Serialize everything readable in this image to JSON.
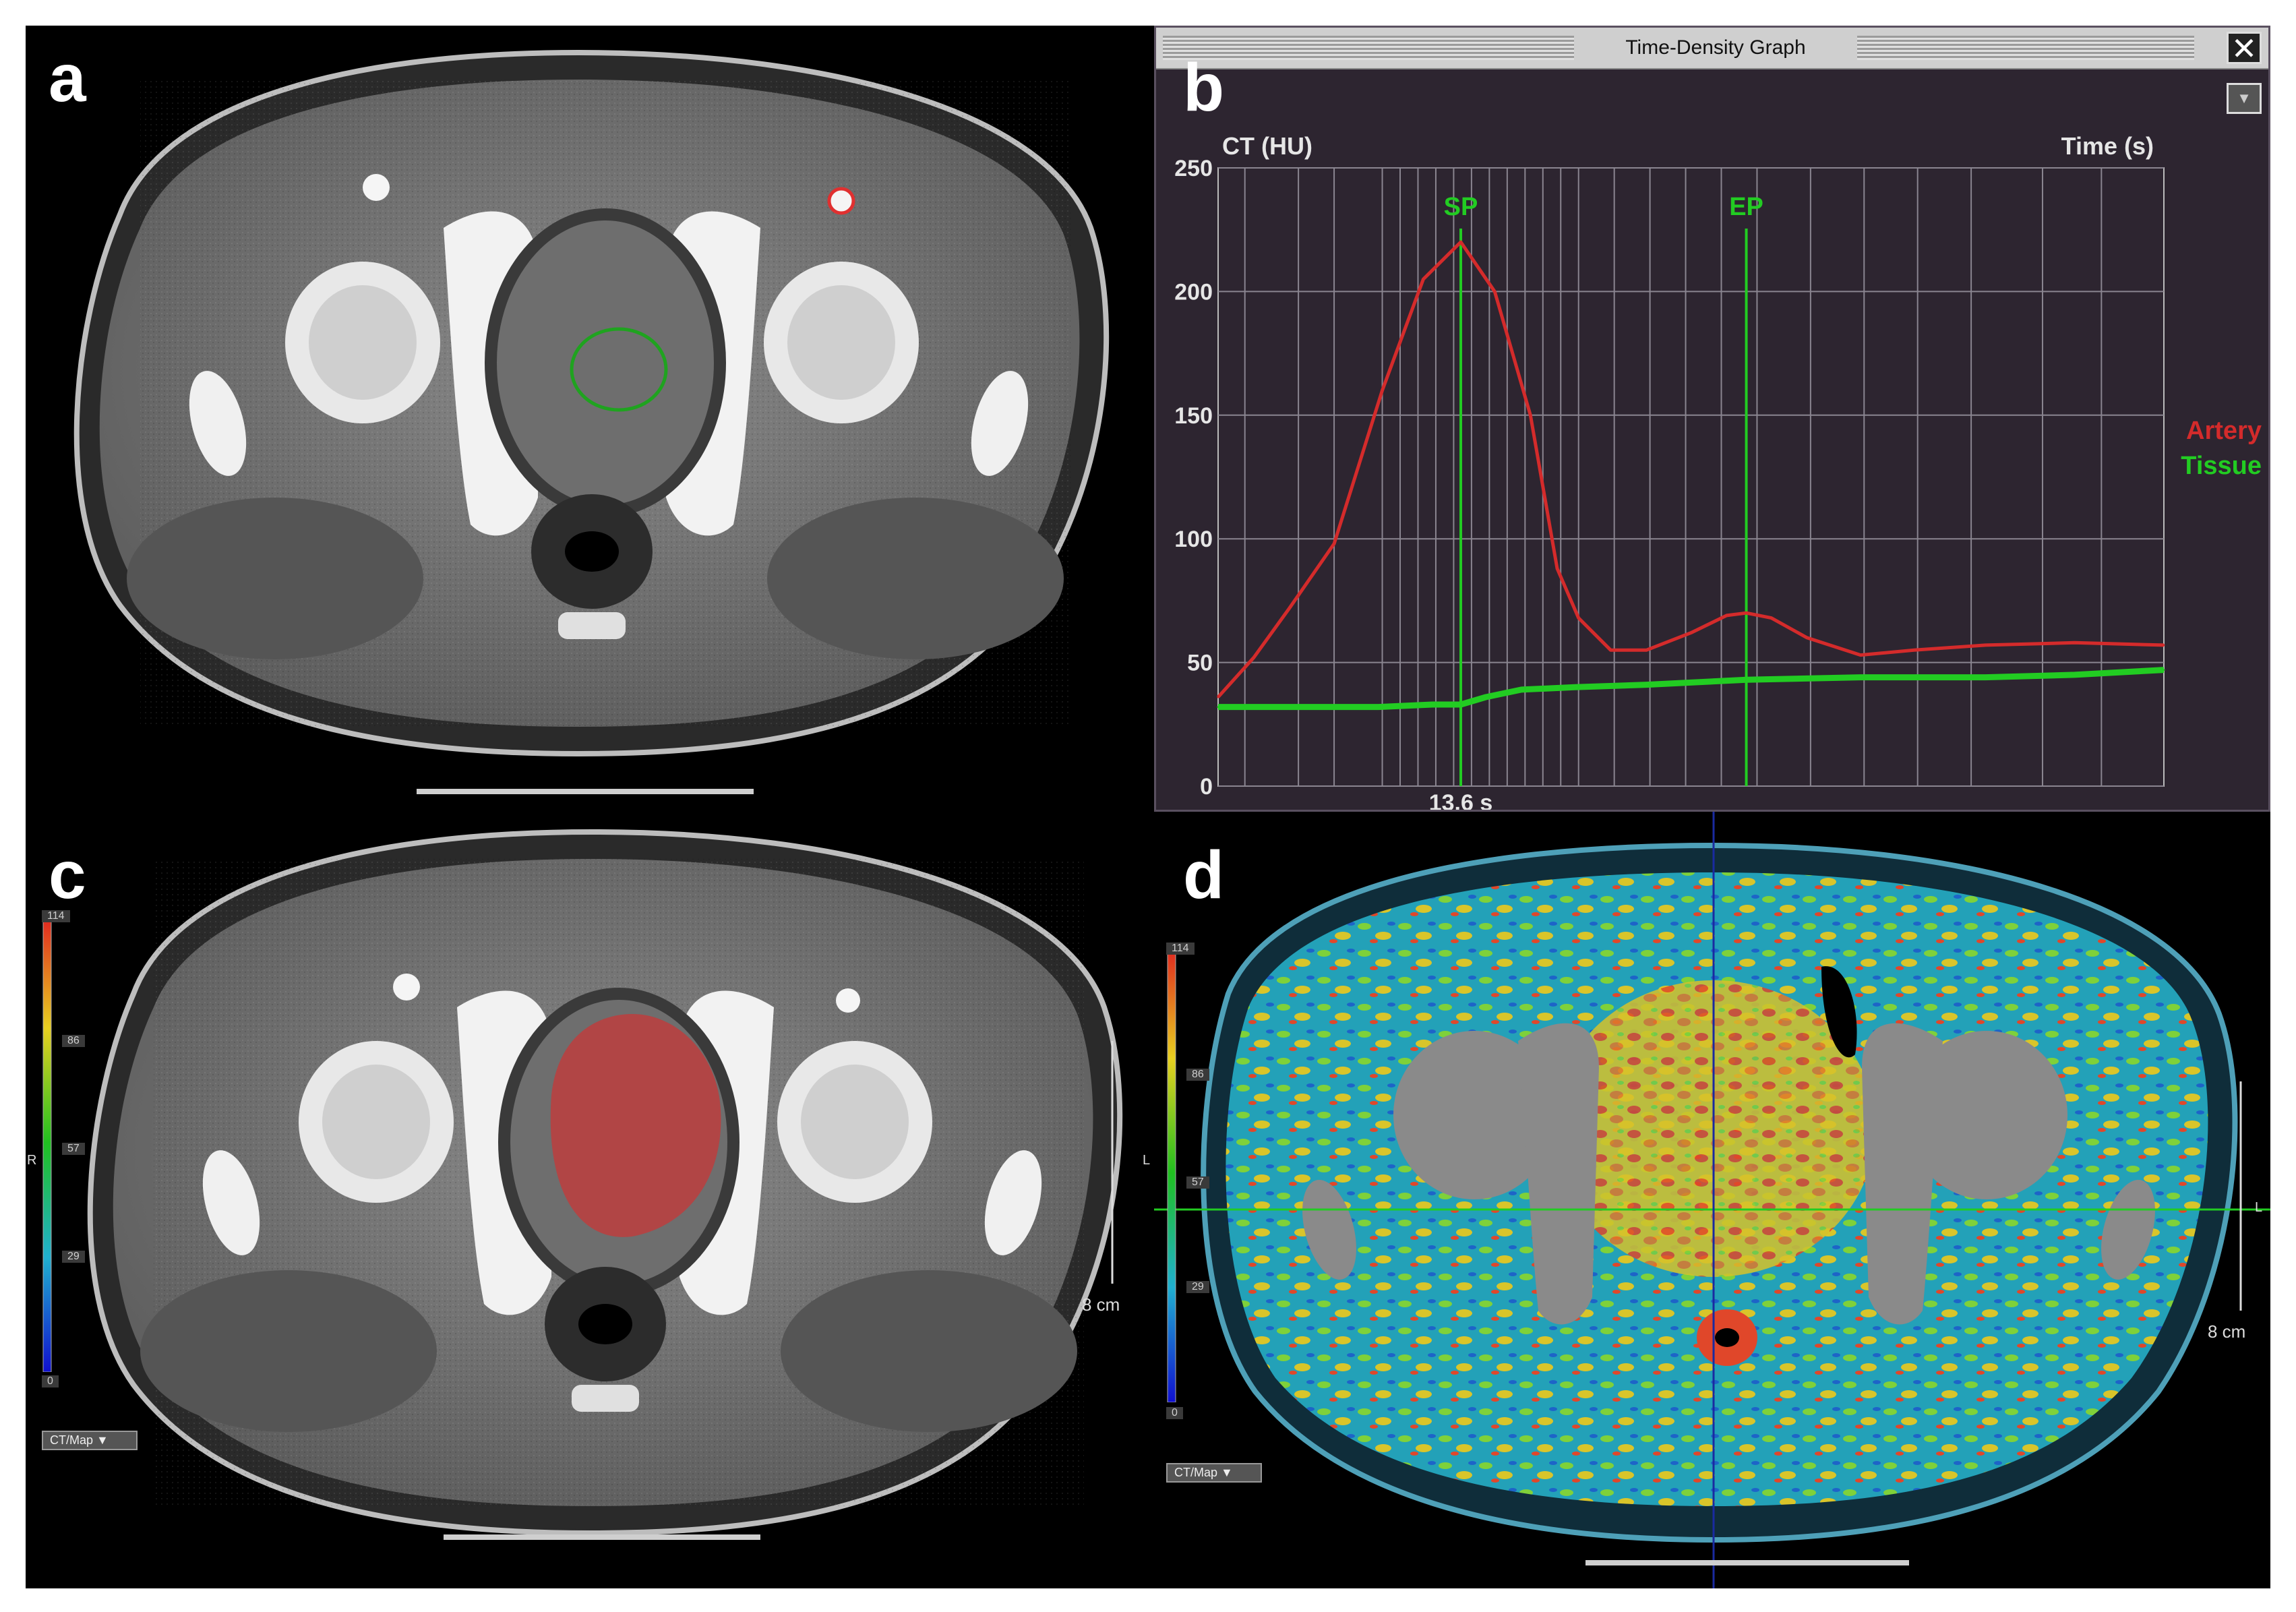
{
  "panels": {
    "a": "a",
    "b": "b",
    "c": "c",
    "d": "d"
  },
  "tdg": {
    "window_title": "Time-Density Graph",
    "close_icon": "close-icon",
    "menu_icon": "dropdown-icon"
  },
  "chart_data": {
    "type": "line",
    "ylabel": "CT (HU)",
    "xlabel": "Time (s)",
    "ylim": [
      0,
      250
    ],
    "y_ticks": [
      0,
      50,
      100,
      150,
      200,
      250
    ],
    "x_marker_label": "13.6 s",
    "markers": [
      {
        "name": "SP",
        "x": 13.6,
        "color": "#22cc22"
      },
      {
        "name": "EP",
        "x": 29.6,
        "color": "#22cc22"
      }
    ],
    "xlim": [
      0,
      53
    ],
    "grid_x": [
      1.5,
      4.5,
      6.5,
      9.2,
      10.2,
      11.2,
      12.2,
      13.2,
      14.2,
      15.2,
      16.2,
      17.2,
      18.2,
      19.2,
      20.2,
      22.2,
      24.2,
      26.2,
      28.2,
      30.2,
      33.2,
      36.2,
      39.2,
      42.2,
      46.2,
      49.5
    ],
    "series": [
      {
        "name": "Artery",
        "color": "#d42b2b",
        "x": [
          0,
          2,
          4,
          6.5,
          9.2,
          11.5,
          13.6,
          15.5,
          17.5,
          19,
          20.2,
          22,
          24,
          26.5,
          28.5,
          29.6,
          31,
          33,
          36,
          39,
          43,
          48,
          53
        ],
        "y": [
          36,
          52,
          72,
          98,
          160,
          205,
          220,
          200,
          150,
          88,
          68,
          55,
          55,
          62,
          69,
          70,
          68,
          60,
          53,
          55,
          57,
          58,
          57
        ]
      },
      {
        "name": "Tissue",
        "color": "#22cc22",
        "x": [
          0,
          4,
          9,
          12,
          13.6,
          15,
          17,
          20,
          24,
          29.6,
          36,
          43,
          48,
          53
        ],
        "y": [
          32,
          32,
          32,
          33,
          33,
          36,
          39,
          40,
          41,
          43,
          44,
          44,
          45,
          47
        ]
      }
    ]
  },
  "colorbar_c": {
    "ticks": [
      "114",
      "86",
      "57",
      "29",
      "0"
    ],
    "dropdown": "CT/Map",
    "side_r": "R",
    "side_l": "L",
    "scale": "8 cm"
  },
  "colorbar_d": {
    "ticks": [
      "114",
      "86",
      "57",
      "29",
      "0"
    ],
    "dropdown": "CT/Map",
    "side_l": "L",
    "scale": "8 cm"
  }
}
